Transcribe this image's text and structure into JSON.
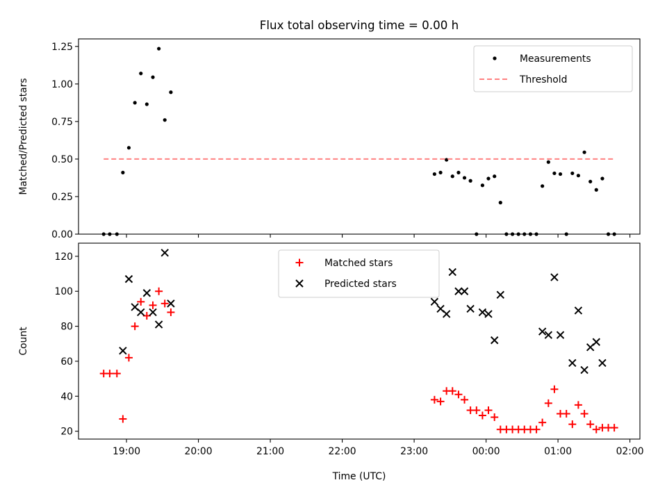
{
  "figure": {
    "title": "Flux total observing time = 0.00 h"
  },
  "chart_data": [
    {
      "type": "scatter",
      "title": "Flux total observing time = 0.00 h",
      "xlabel": "",
      "ylabel": "Matched/Predicted stars",
      "xlim": [
        18.333,
        26.139
      ],
      "ylim": [
        0,
        1.3
      ],
      "x_ticks": [
        19,
        20,
        21,
        22,
        23,
        24,
        25,
        26
      ],
      "x_tick_labels": [],
      "y_ticks": [
        0,
        0.25,
        0.5,
        0.75,
        1.0,
        1.25
      ],
      "y_tick_labels": [
        "0.00",
        "0.25",
        "0.50",
        "0.75",
        "1.00",
        "1.25"
      ],
      "legend": {
        "placement": "upper right",
        "entries": [
          "Measurements",
          "Threshold"
        ]
      },
      "series": [
        {
          "name": "Measurements",
          "marker": "dot",
          "color": "#000000",
          "points": [
            [
              18.683,
              0.0
            ],
            [
              18.767,
              0.0
            ],
            [
              18.867,
              0.0
            ],
            [
              18.95,
              0.41
            ],
            [
              19.033,
              0.575
            ],
            [
              19.117,
              0.875
            ],
            [
              19.2,
              1.07
            ],
            [
              19.283,
              0.865
            ],
            [
              19.367,
              1.045
            ],
            [
              19.45,
              1.235
            ],
            [
              19.533,
              0.76
            ],
            [
              19.617,
              0.945
            ],
            [
              23.283,
              0.4
            ],
            [
              23.367,
              0.41
            ],
            [
              23.45,
              0.495
            ],
            [
              23.533,
              0.385
            ],
            [
              23.617,
              0.41
            ],
            [
              23.7,
              0.375
            ],
            [
              23.783,
              0.355
            ],
            [
              23.867,
              0.0
            ],
            [
              23.95,
              0.325
            ],
            [
              24.033,
              0.37
            ],
            [
              24.117,
              0.385
            ],
            [
              24.2,
              0.21
            ],
            [
              24.283,
              0.0
            ],
            [
              24.367,
              0.0
            ],
            [
              24.45,
              0.0
            ],
            [
              24.533,
              0.0
            ],
            [
              24.617,
              0.0
            ],
            [
              24.7,
              0.0
            ],
            [
              24.783,
              0.32
            ],
            [
              24.867,
              0.48
            ],
            [
              24.95,
              0.405
            ],
            [
              25.033,
              0.4
            ],
            [
              25.117,
              0.0
            ],
            [
              25.2,
              0.405
            ],
            [
              25.283,
              0.39
            ],
            [
              25.367,
              0.545
            ],
            [
              25.45,
              0.35
            ],
            [
              25.533,
              0.295
            ],
            [
              25.617,
              0.37
            ],
            [
              25.7,
              0.0
            ],
            [
              25.783,
              0.0
            ]
          ]
        },
        {
          "name": "Threshold",
          "style": "dashed",
          "color": "#ff8080",
          "points": [
            [
              18.683,
              0.5
            ],
            [
              25.783,
              0.5
            ]
          ]
        }
      ]
    },
    {
      "type": "scatter",
      "xlabel": "Time (UTC)",
      "ylabel": "Count",
      "xlim": [
        18.333,
        26.139
      ],
      "ylim": [
        15.5,
        127.5
      ],
      "x_ticks": [
        19,
        20,
        21,
        22,
        23,
        24,
        25,
        26
      ],
      "x_tick_labels": [
        "19:00",
        "20:00",
        "21:00",
        "22:00",
        "23:00",
        "00:00",
        "01:00",
        "02:00"
      ],
      "y_ticks": [
        20,
        40,
        60,
        80,
        100,
        120
      ],
      "y_tick_labels": [
        "20",
        "40",
        "60",
        "80",
        "100",
        "120"
      ],
      "legend": {
        "placement": "upper center",
        "entries": [
          "Matched stars",
          "Predicted stars"
        ]
      },
      "series": [
        {
          "name": "Matched stars",
          "marker": "plus",
          "color": "#ff0000",
          "points": [
            [
              18.683,
              53
            ],
            [
              18.767,
              53
            ],
            [
              18.867,
              53
            ],
            [
              18.95,
              27
            ],
            [
              19.033,
              62
            ],
            [
              19.117,
              80
            ],
            [
              19.2,
              94
            ],
            [
              19.283,
              86
            ],
            [
              19.367,
              92
            ],
            [
              19.45,
              100
            ],
            [
              19.533,
              93
            ],
            [
              19.617,
              88
            ],
            [
              23.283,
              38
            ],
            [
              23.367,
              37
            ],
            [
              23.45,
              43
            ],
            [
              23.533,
              43
            ],
            [
              23.617,
              41
            ],
            [
              23.7,
              38
            ],
            [
              23.783,
              32
            ],
            [
              23.867,
              32
            ],
            [
              23.95,
              29
            ],
            [
              24.033,
              32
            ],
            [
              24.117,
              28
            ],
            [
              24.2,
              21
            ],
            [
              24.283,
              21
            ],
            [
              24.367,
              21
            ],
            [
              24.45,
              21
            ],
            [
              24.533,
              21
            ],
            [
              24.617,
              21
            ],
            [
              24.7,
              21
            ],
            [
              24.783,
              25
            ],
            [
              24.867,
              36
            ],
            [
              24.95,
              44
            ],
            [
              25.033,
              30
            ],
            [
              25.117,
              30
            ],
            [
              25.2,
              24
            ],
            [
              25.283,
              35
            ],
            [
              25.367,
              30
            ],
            [
              25.45,
              24
            ],
            [
              25.533,
              21
            ],
            [
              25.617,
              22
            ],
            [
              25.7,
              22
            ],
            [
              25.783,
              22
            ]
          ]
        },
        {
          "name": "Predicted stars",
          "marker": "x",
          "color": "#000000",
          "points": [
            [
              18.95,
              66
            ],
            [
              19.033,
              107
            ],
            [
              19.117,
              91
            ],
            [
              19.2,
              88
            ],
            [
              19.283,
              99
            ],
            [
              19.367,
              88
            ],
            [
              19.45,
              81
            ],
            [
              19.533,
              122
            ],
            [
              19.617,
              93
            ],
            [
              23.283,
              94
            ],
            [
              23.367,
              90
            ],
            [
              23.45,
              87
            ],
            [
              23.533,
              111
            ],
            [
              23.617,
              100
            ],
            [
              23.7,
              100
            ],
            [
              23.783,
              90
            ],
            [
              23.95,
              88
            ],
            [
              24.033,
              87
            ],
            [
              24.117,
              72
            ],
            [
              24.2,
              98
            ],
            [
              24.783,
              77
            ],
            [
              24.867,
              75
            ],
            [
              24.95,
              108
            ],
            [
              25.033,
              75
            ],
            [
              25.2,
              59
            ],
            [
              25.283,
              89
            ],
            [
              25.367,
              55
            ],
            [
              25.45,
              68
            ],
            [
              25.533,
              71
            ],
            [
              25.617,
              59
            ]
          ]
        }
      ]
    }
  ]
}
